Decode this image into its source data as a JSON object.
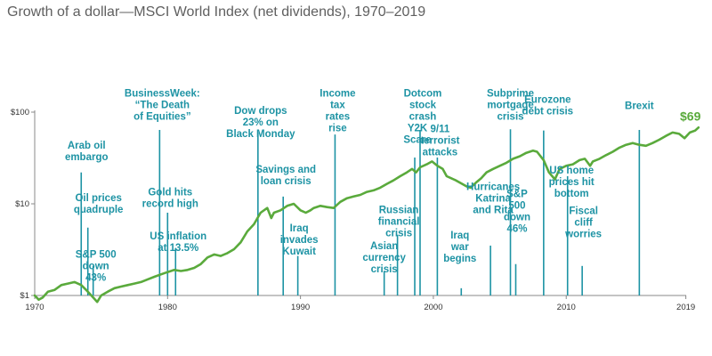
{
  "title": "Growth of a dollar—MSCI World Index (net dividends), 1970–2019",
  "colors": {
    "line": "#5aaa3c",
    "annotation": "#1d93a4",
    "axis": "#888888",
    "text": "#333333"
  },
  "chart_data": {
    "type": "line",
    "title": "Growth of a dollar—MSCI World Index (net dividends), 1970–2019",
    "xlabel": "",
    "ylabel": "",
    "y_scale": "log",
    "ylim": [
      1,
      100
    ],
    "xlim": [
      1970,
      2020.5
    ],
    "y_ticks": [
      {
        "value": 1,
        "label": "$1"
      },
      {
        "value": 10,
        "label": "$10"
      },
      {
        "value": 100,
        "label": "$100"
      }
    ],
    "x_ticks": [
      {
        "value": 1970,
        "label": "1970"
      },
      {
        "value": 1980,
        "label": "1980"
      },
      {
        "value": 1990,
        "label": "1990"
      },
      {
        "value": 2000,
        "label": "2000"
      },
      {
        "value": 2010,
        "label": "2010"
      },
      {
        "value": 2019,
        "label": "2019"
      }
    ],
    "end_label": "$69",
    "series": [
      {
        "x": [
          1970.0,
          1970.3,
          1970.6,
          1971.0,
          1971.5,
          1972.0,
          1972.5,
          1973.0,
          1973.5,
          1974.0,
          1974.4,
          1974.7,
          1975.0,
          1975.5,
          1976.0,
          1976.5,
          1977.0,
          1977.5,
          1978.0,
          1978.5,
          1979.0,
          1979.5,
          1980.0,
          1980.5,
          1981.0,
          1981.5,
          1982.0,
          1982.5,
          1983.0,
          1983.5,
          1984.0,
          1984.5,
          1985.0,
          1985.5,
          1986.0,
          1986.5,
          1987.0,
          1987.5,
          1987.8,
          1988.0,
          1988.5,
          1989.0,
          1989.5,
          1990.0,
          1990.4,
          1990.75,
          1991.0,
          1991.5,
          1992.0,
          1992.5,
          1993.0,
          1993.5,
          1994.0,
          1994.5,
          1995.0,
          1995.5,
          1996.0,
          1996.5,
          1997.0,
          1997.5,
          1998.0,
          1998.4,
          1998.7,
          1999.0,
          1999.5,
          1999.9,
          2000.3,
          2000.7,
          2001.0,
          2001.7,
          2002.0,
          2002.5,
          2002.8,
          2003.2,
          2003.6,
          2004.0,
          2004.5,
          2005.0,
          2005.5,
          2006.0,
          2006.5,
          2007.0,
          2007.5,
          2007.8,
          2008.3,
          2008.7,
          2009.15,
          2009.5,
          2010.0,
          2010.5,
          2011.0,
          2011.4,
          2011.8,
          2012.0,
          2012.5,
          2013.0,
          2013.5,
          2014.0,
          2014.5,
          2015.0,
          2015.5,
          2016.0,
          2016.5,
          2017.0,
          2017.5,
          2018.0,
          2018.5,
          2018.9,
          2019.3,
          2019.7,
          2019.95
        ],
        "values": [
          1.0,
          0.9,
          0.95,
          1.1,
          1.15,
          1.3,
          1.35,
          1.4,
          1.3,
          1.1,
          0.95,
          0.85,
          1.0,
          1.1,
          1.2,
          1.25,
          1.3,
          1.35,
          1.4,
          1.5,
          1.6,
          1.7,
          1.8,
          1.9,
          1.85,
          1.9,
          2.0,
          2.2,
          2.6,
          2.8,
          2.7,
          2.9,
          3.2,
          3.8,
          5.0,
          6.0,
          8.0,
          9.0,
          7.0,
          8.0,
          8.5,
          9.5,
          10.0,
          8.5,
          8.0,
          8.5,
          9.0,
          9.5,
          9.2,
          9.0,
          10.5,
          11.5,
          12.0,
          12.5,
          13.5,
          14.0,
          15.0,
          16.5,
          18.0,
          20.0,
          22.0,
          24.0,
          22.0,
          25.0,
          27.0,
          29.0,
          26.0,
          24.0,
          20.0,
          18.0,
          17.0,
          15.5,
          15.0,
          17.0,
          19.0,
          22.0,
          24.0,
          26.0,
          28.0,
          31.0,
          33.0,
          36.0,
          38.0,
          37.0,
          30.0,
          22.0,
          18.5,
          24.0,
          26.0,
          27.0,
          30.0,
          31.0,
          26.0,
          29.0,
          31.0,
          34.0,
          37.0,
          41.0,
          44.0,
          46.0,
          44.0,
          43.0,
          46.0,
          50.0,
          55.0,
          60.0,
          58.0,
          52.0,
          60.0,
          63.0,
          68.0
        ]
      }
    ],
    "annotations": [
      {
        "x": 1973.9,
        "y": 39.8,
        "lines": [
          "Arab oil",
          "embargo"
        ]
      },
      {
        "x": 1974.8,
        "y": 10.7,
        "lines": [
          "Oil prices",
          "quadruple"
        ]
      },
      {
        "x": 1974.6,
        "y": 2.6,
        "lines": [
          "S&P 500",
          "down",
          "43%"
        ]
      },
      {
        "x": 1979.6,
        "y": 147.9,
        "lines": [
          "BusinessWeek:",
          "“The Death",
          "of Equities”"
        ]
      },
      {
        "x": 1980.2,
        "y": 12.3,
        "lines": [
          "Gold hits",
          "record high"
        ]
      },
      {
        "x": 1980.8,
        "y": 4.1,
        "lines": [
          "US inflation",
          "at 13.5%"
        ]
      },
      {
        "x": 1987.0,
        "y": 95.5,
        "lines": [
          "Dow drops",
          "23% on",
          "Black Monday"
        ]
      },
      {
        "x": 1988.9,
        "y": 21.9,
        "lines": [
          "Savings and",
          "loan crisis"
        ]
      },
      {
        "x": 1989.9,
        "y": 5.0,
        "lines": [
          "Iraq",
          "invades",
          "Kuwait"
        ]
      },
      {
        "x": 1992.8,
        "y": 147.9,
        "lines": [
          "Income",
          "tax",
          "rates",
          "rise"
        ]
      },
      {
        "x": 1996.3,
        "y": 3.2,
        "lines": [
          "Asian",
          "currency",
          "crisis"
        ]
      },
      {
        "x": 1997.4,
        "y": 7.9,
        "lines": [
          "Russian",
          "financial",
          "crisis"
        ]
      },
      {
        "x": 1998.8,
        "y": 61.7,
        "lines": [
          "Y2K",
          "Scare"
        ]
      },
      {
        "x": 1999.2,
        "y": 147.9,
        "lines": [
          "Dotcom",
          "stock",
          "crash"
        ]
      },
      {
        "x": 2000.5,
        "y": 60.3,
        "lines": [
          "9/11",
          "terrorist",
          "attacks"
        ]
      },
      {
        "x": 2002.0,
        "y": 4.2,
        "lines": [
          "Iraq",
          "war",
          "begins"
        ]
      },
      {
        "x": 2004.5,
        "y": 14.1,
        "lines": [
          "Hurricanes",
          "Katrina",
          "and Rita"
        ]
      },
      {
        "x": 2005.8,
        "y": 147.9,
        "lines": [
          "Subprime",
          "mortgage",
          "crisis"
        ]
      },
      {
        "x": 2006.3,
        "y": 11.8,
        "lines": [
          "S&P",
          "500",
          "down",
          "46%"
        ]
      },
      {
        "x": 2008.6,
        "y": 126.3,
        "lines": [
          "Eurozone",
          "debt crisis"
        ]
      },
      {
        "x": 2010.4,
        "y": 21.4,
        "lines": [
          "US home",
          "prices hit",
          "bottom"
        ]
      },
      {
        "x": 2011.3,
        "y": 7.7,
        "lines": [
          "Fiscal",
          "cliff",
          "worries"
        ]
      },
      {
        "x": 2015.5,
        "y": 108.0,
        "lines": [
          "Brexit"
        ]
      }
    ],
    "event_lines": [
      {
        "x": 1973.5,
        "y_top": 22.0
      },
      {
        "x": 1974.0,
        "y_top": 5.5
      },
      {
        "x": 1974.4,
        "y_top": 2.1
      },
      {
        "x": 1979.4,
        "y_top": 64.0
      },
      {
        "x": 1980.0,
        "y_top": 8.0
      },
      {
        "x": 1980.6,
        "y_top": 3.3
      },
      {
        "x": 1986.8,
        "y_top": 60.0
      },
      {
        "x": 1988.7,
        "y_top": 12.0
      },
      {
        "x": 1989.8,
        "y_top": 2.7
      },
      {
        "x": 1992.6,
        "y_top": 57.0
      },
      {
        "x": 1996.3,
        "y_top": 1.85
      },
      {
        "x": 1997.3,
        "y_top": 4.6
      },
      {
        "x": 1998.6,
        "y_top": 32.0
      },
      {
        "x": 1999.0,
        "y_top": 64.0
      },
      {
        "x": 2000.3,
        "y_top": 32.0
      },
      {
        "x": 2002.1,
        "y_top": 1.2
      },
      {
        "x": 2004.3,
        "y_top": 3.5
      },
      {
        "x": 2005.8,
        "y_top": 65.0
      },
      {
        "x": 2006.2,
        "y_top": 2.2
      },
      {
        "x": 2008.3,
        "y_top": 63.0
      },
      {
        "x": 2010.1,
        "y_top": 20.0
      },
      {
        "x": 2011.2,
        "y_top": 2.1
      },
      {
        "x": 2015.5,
        "y_top": 64.0
      }
    ]
  }
}
